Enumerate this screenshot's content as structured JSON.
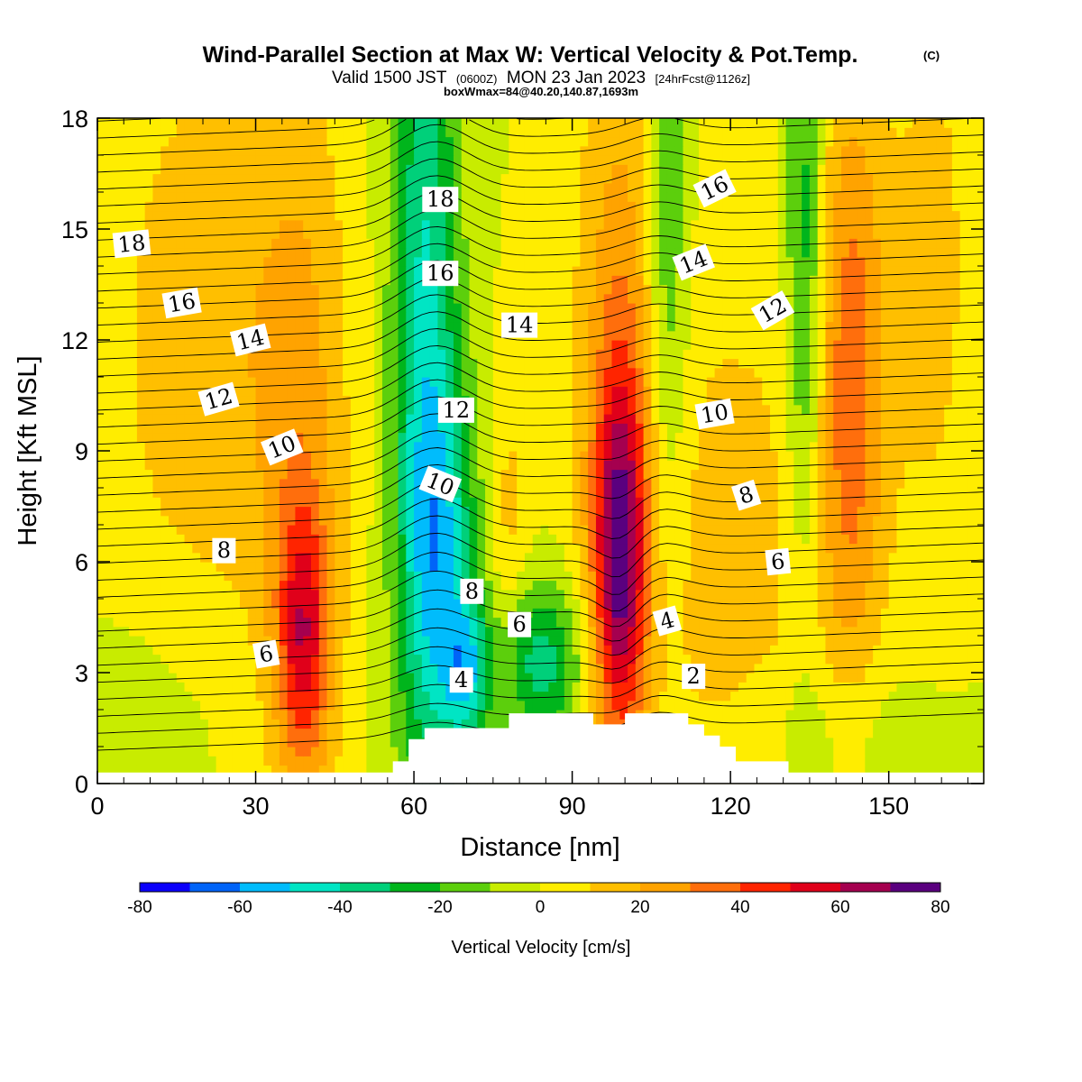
{
  "header": {
    "title": "Wind-Parallel Section at Max W: Vertical Velocity & Pot.Temp.",
    "title_mark": "(C)",
    "valid_prefix": "Valid 1500 JST",
    "valid_zulu": "(0600Z)",
    "valid_date": "MON 23 Jan 2023",
    "forecast_info": "[24hrFcst@1126z]",
    "box_info": "boxWmax=84@40.20,140.87,1693m"
  },
  "colorbar": {
    "title": "Vertical Velocity [cm/s]",
    "tick_labels": [
      "-80",
      "-60",
      "-40",
      "-20",
      "0",
      "20",
      "40",
      "60",
      "80"
    ],
    "colors": [
      "#0b00fb",
      "#0064f8",
      "#00bcfc",
      "#00e5c4",
      "#00d07a",
      "#00b51c",
      "#5ccf0c",
      "#c8ec00",
      "#ffed00",
      "#ffbf00",
      "#ffa300",
      "#ff6e0c",
      "#ff2400",
      "#e0001a",
      "#a5004f",
      "#5a007f"
    ]
  },
  "chart_data": {
    "type": "heatmap",
    "xlabel": "Distance [nm]",
    "ylabel": "Height [Kft MSL]",
    "xlim": [
      0,
      168
    ],
    "ylim": [
      0,
      18
    ],
    "x_ticks": [
      "0",
      "30",
      "60",
      "90",
      "120",
      "150"
    ],
    "y_ticks": [
      "0",
      "3",
      "6",
      "9",
      "12",
      "15",
      "18"
    ],
    "value_range": [
      -80,
      80
    ],
    "field": "vertical velocity (cm/s), shaded",
    "contours": "potential temperature, black lines",
    "features": [
      {
        "x_center": 22,
        "x_width": 14,
        "z_center": 12,
        "z_width": 6,
        "w": 18
      },
      {
        "x_center": 39,
        "x_width": 3.5,
        "z_center": 4,
        "z_width": 2.5,
        "w": 42
      },
      {
        "x_center": 39,
        "x_width": 6,
        "z_center": 8,
        "z_width": 8,
        "w": 18
      },
      {
        "x_center": 62,
        "x_width": 4.5,
        "z_center": 12,
        "z_width": 9,
        "w": -42
      },
      {
        "x_center": 66,
        "x_width": 5,
        "z_center": 6,
        "z_width": 3.5,
        "w": -32
      },
      {
        "x_center": 70,
        "x_width": 3,
        "z_center": 3,
        "z_width": 1.4,
        "w": -35
      },
      {
        "x_center": 84,
        "x_width": 6,
        "z_center": 3.3,
        "z_width": 1.6,
        "w": -36
      },
      {
        "x_center": 78,
        "x_width": 3,
        "z_center": 7,
        "z_width": 3,
        "w": 14
      },
      {
        "x_center": 99,
        "x_width": 3.5,
        "z_center": 6,
        "z_width": 3.5,
        "w": 60
      },
      {
        "x_center": 99,
        "x_width": 6,
        "z_center": 12,
        "z_width": 7,
        "w": 24
      },
      {
        "x_center": 108,
        "x_width": 3,
        "z_center": 14,
        "z_width": 6,
        "w": -25
      },
      {
        "x_center": 134,
        "x_width": 2.5,
        "z_center": 14,
        "z_width": 6,
        "w": -28
      },
      {
        "x_center": 143,
        "x_width": 4.5,
        "z_center": 11,
        "z_width": 6,
        "w": 34
      },
      {
        "x_center": 158,
        "x_width": 6,
        "z_center": 14,
        "z_width": 6,
        "w": 14
      },
      {
        "x_center": 120,
        "x_width": 14,
        "z_center": 6,
        "z_width": 6,
        "w": 15
      },
      {
        "x_center": 10,
        "x_width": 12,
        "z_center": 2,
        "z_width": 2.5,
        "w": -6
      },
      {
        "x_center": 140,
        "x_width": 14,
        "z_center": 1.2,
        "z_width": 1.5,
        "w": -10
      }
    ],
    "terrain": {
      "x": [
        0,
        56,
        56,
        59,
        59,
        62,
        62,
        65,
        65,
        78,
        78,
        94,
        94,
        100,
        100,
        112,
        112,
        115,
        115,
        118,
        118,
        121,
        121,
        131,
        131,
        168
      ],
      "z": [
        0.3,
        0.3,
        0.6,
        0.6,
        1.2,
        1.2,
        1.5,
        1.5,
        1.5,
        1.5,
        1.9,
        1.9,
        1.6,
        1.6,
        1.9,
        1.9,
        1.6,
        1.6,
        1.3,
        1.3,
        1.0,
        1.0,
        0.6,
        0.6,
        0.3,
        0.3
      ]
    },
    "contour_labels": [
      {
        "text": "18",
        "x": 6.5,
        "z": 14.6,
        "angle": -6
      },
      {
        "text": "16",
        "x": 16,
        "z": 13.0,
        "angle": -10
      },
      {
        "text": "14",
        "x": 29,
        "z": 12.0,
        "angle": -14
      },
      {
        "text": "12",
        "x": 23,
        "z": 10.4,
        "angle": -16
      },
      {
        "text": "10",
        "x": 35,
        "z": 9.1,
        "angle": -22
      },
      {
        "text": "8",
        "x": 24,
        "z": 6.3,
        "angle": 0
      },
      {
        "text": "6",
        "x": 32,
        "z": 3.5,
        "angle": -10
      },
      {
        "text": "18",
        "x": 65,
        "z": 15.8,
        "angle": 0
      },
      {
        "text": "16",
        "x": 65,
        "z": 13.8,
        "angle": 0
      },
      {
        "text": "14",
        "x": 80,
        "z": 12.4,
        "angle": 0
      },
      {
        "text": "12",
        "x": 68,
        "z": 10.1,
        "angle": 0
      },
      {
        "text": "10",
        "x": 65,
        "z": 8.1,
        "angle": 22
      },
      {
        "text": "8",
        "x": 71,
        "z": 5.2,
        "angle": 0
      },
      {
        "text": "6",
        "x": 80,
        "z": 4.3,
        "angle": 0
      },
      {
        "text": "4",
        "x": 69,
        "z": 2.8,
        "angle": 0
      },
      {
        "text": "16",
        "x": 117,
        "z": 16.1,
        "angle": -26
      },
      {
        "text": "14",
        "x": 113,
        "z": 14.1,
        "angle": -22
      },
      {
        "text": "12",
        "x": 128,
        "z": 12.8,
        "angle": -30
      },
      {
        "text": "10",
        "x": 117,
        "z": 10.0,
        "angle": -10
      },
      {
        "text": "8",
        "x": 123,
        "z": 7.8,
        "angle": -18
      },
      {
        "text": "6",
        "x": 129,
        "z": 6.0,
        "angle": -6
      },
      {
        "text": "4",
        "x": 108,
        "z": 4.4,
        "angle": -16
      },
      {
        "text": "2",
        "x": 113,
        "z": 2.9,
        "angle": 0
      }
    ]
  }
}
